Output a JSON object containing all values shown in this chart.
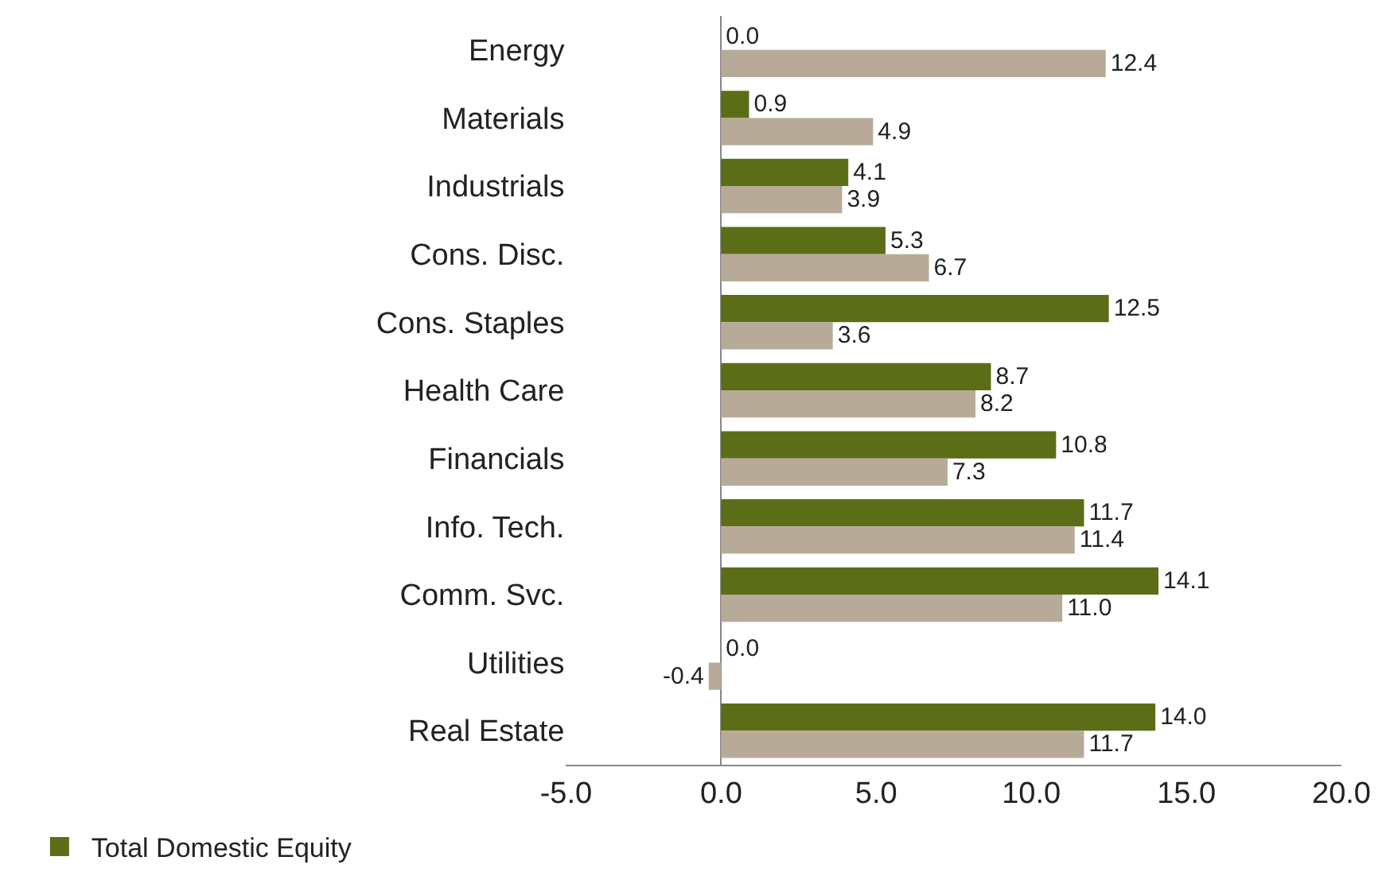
{
  "chart_data": {
    "type": "bar",
    "orientation": "horizontal",
    "categories": [
      "Energy",
      "Materials",
      "Industrials",
      "Cons. Disc.",
      "Cons. Staples",
      "Health Care",
      "Financials",
      "Info. Tech.",
      "Comm. Svc.",
      "Utilities",
      "Real Estate"
    ],
    "series": [
      {
        "name": "Total Domestic Equity",
        "color": "#5b6e17",
        "values": [
          0.0,
          0.9,
          4.1,
          5.3,
          12.5,
          8.7,
          10.8,
          11.7,
          14.1,
          0.0,
          14.0
        ],
        "value_labels": [
          "0.0",
          "0.9",
          "4.1",
          "5.3",
          "12.5",
          "8.7",
          "10.8",
          "11.7",
          "14.1",
          "0.0",
          "14.0"
        ]
      },
      {
        "color": "#b8aa98",
        "values": [
          12.4,
          4.9,
          3.9,
          6.7,
          3.6,
          8.2,
          7.3,
          11.4,
          11.0,
          -0.4,
          11.7
        ],
        "value_labels": [
          "12.4",
          "4.9",
          "3.9",
          "6.7",
          "3.6",
          "8.2",
          "7.3",
          "11.4",
          "11.0",
          "-0.4",
          "11.7"
        ]
      }
    ],
    "xlim": [
      -5,
      20
    ],
    "xticks": [
      {
        "value": -5,
        "label": "-5.0"
      },
      {
        "value": 0,
        "label": "0.0"
      },
      {
        "value": 5,
        "label": "5.0"
      },
      {
        "value": 10,
        "label": "10.0"
      },
      {
        "value": 15,
        "label": "15.0"
      },
      {
        "value": 20,
        "label": "20.0"
      }
    ],
    "legend": "bottom left"
  }
}
